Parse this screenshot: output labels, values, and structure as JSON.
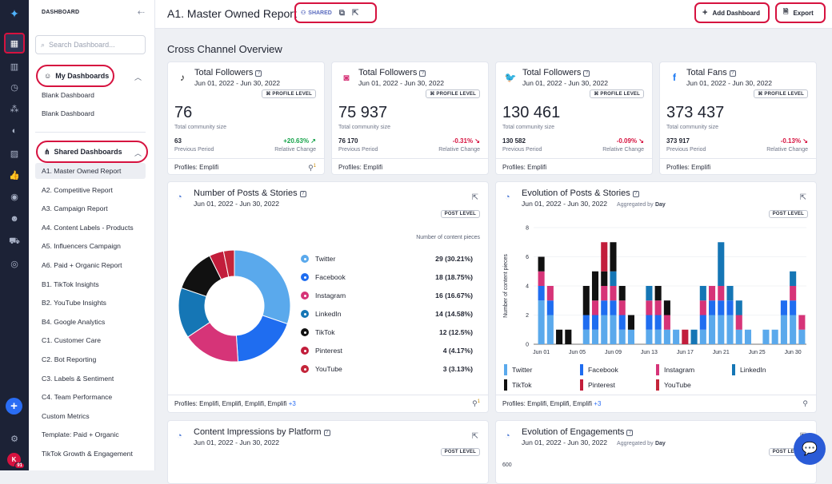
{
  "rail": {
    "avatar_initial": "K",
    "avatar_badge": "91"
  },
  "sidebar": {
    "header": "DASHBOARD",
    "search_placeholder": "Search Dashboard...",
    "my_dashboards_label": "My Dashboards",
    "my_dashboards": [
      "Blank Dashboard",
      "Blank Dashboard"
    ],
    "shared_dashboards_label": "Shared Dashboards",
    "shared_dashboards": [
      "A1. Master Owned Report",
      "A2. Competitive Report",
      "A3. Campaign Report",
      "A4. Content Labels - Products",
      "A5. Influencers Campaign",
      "A6. Paid + Organic Report",
      "B1. TikTok Insights",
      "B2. YouTube Insights",
      "B4. Google Analytics",
      "C1. Customer Care",
      "C2. Bot Reporting",
      "C3. Labels & Sentiment",
      "C4. Team Performance",
      "Custom Metrics",
      "Template: Paid + Organic",
      "TikTok Growth & Engagement"
    ]
  },
  "header": {
    "title": "A1. Master Owned Report",
    "shared_label": "SHARED",
    "add_dashboard_label": "Add Dashboard",
    "export_label": "Export"
  },
  "section_title": "Cross Channel Overview",
  "stats": [
    {
      "network": "TikTok",
      "icon": "tiktok-icon",
      "title": "Total Followers",
      "date": "Jun 01, 2022 - Jun 30, 2022",
      "level": "PROFILE LEVEL",
      "value": "76",
      "sub": "Total community size",
      "prev": "63",
      "prev_label": "Previous Period",
      "change": "+20.63%",
      "change_dir": "up",
      "change_label": "Relative Change",
      "profiles": "Profiles: Emplifi",
      "badge": "1"
    },
    {
      "network": "Instagram",
      "icon": "instagram-icon",
      "title": "Total Followers",
      "date": "Jun 01, 2022 - Jun 30, 2022",
      "level": "PROFILE LEVEL",
      "value": "75 937",
      "sub": "Total community size",
      "prev": "76 170",
      "prev_label": "Previous Period",
      "change": "-0.31%",
      "change_dir": "down",
      "change_label": "Relative Change",
      "profiles": "Profiles: Emplifi",
      "badge": ""
    },
    {
      "network": "Twitter",
      "icon": "twitter-icon",
      "title": "Total Followers",
      "date": "Jun 01, 2022 - Jun 30, 2022",
      "level": "PROFILE LEVEL",
      "value": "130 461",
      "sub": "Total community size",
      "prev": "130 582",
      "prev_label": "Previous Period",
      "change": "-0.09%",
      "change_dir": "down",
      "change_label": "Relative Change",
      "profiles": "Profiles: Emplifi",
      "badge": ""
    },
    {
      "network": "Facebook",
      "icon": "facebook-icon",
      "title": "Total Fans",
      "date": "Jun 01, 2022 - Jun 30, 2022",
      "level": "PROFILE LEVEL",
      "value": "373 437",
      "sub": "Total community size",
      "prev": "373 917",
      "prev_label": "Previous Period",
      "change": "-0.13%",
      "change_dir": "down",
      "change_label": "Relative Change",
      "profiles": "Profiles: Emplifi",
      "badge": ""
    }
  ],
  "posts_card": {
    "title": "Number of Posts & Stories",
    "date": "Jun 01, 2022 - Jun 30, 2022",
    "level": "POST LEVEL",
    "legend_header": "Number of content pieces",
    "profiles": "Profiles: Emplifi, Emplifi, Emplifi, Emplifi",
    "more": "+3",
    "badge": "1"
  },
  "evo_card": {
    "title": "Evolution of Posts & Stories",
    "date": "Jun 01, 2022 - Jun 30, 2022",
    "aggregated_prefix": "Aggregated by",
    "aggregated_value": "Day",
    "level": "POST LEVEL",
    "profiles": "Profiles: Emplifi, Emplifi, Emplifi",
    "more": "+3"
  },
  "impressions_card": {
    "title": "Content Impressions by Platform",
    "date": "Jun 01, 2022 - Jun 30, 2022",
    "level": "POST LEVEL"
  },
  "engagements_card": {
    "title": "Evolution of Engagements",
    "date": "Jun 01, 2022 - Jun 30, 2022",
    "aggregated_prefix": "Aggregated by",
    "aggregated_value": "Day",
    "level": "POST LEVEL",
    "y_tick_top": "600"
  },
  "chart_data": [
    {
      "type": "pie",
      "categories": [
        "Twitter",
        "Facebook",
        "Instagram",
        "LinkedIn",
        "TikTok",
        "Pinterest",
        "YouTube"
      ],
      "values": [
        29,
        18,
        16,
        14,
        12,
        4,
        3
      ],
      "labels": [
        "29 (30.21%)",
        "18 (18.75%)",
        "16 (16.67%)",
        "14 (14.58%)",
        "12 (12.5%)",
        "4 (4.17%)",
        "3 (3.13%)"
      ],
      "colors": [
        "#5aa9ec",
        "#1f6df0",
        "#d63478",
        "#1576b5",
        "#111111",
        "#c21d3b",
        "#c4253a"
      ],
      "ylabel": "Number of content pieces"
    },
    {
      "type": "bar",
      "stacked": true,
      "ylabel": "Number of content pieces",
      "ylim": [
        0,
        8
      ],
      "yticks": [
        0,
        2,
        4,
        6,
        8
      ],
      "x_tick_labels": [
        "Jun 01",
        "Jun 05",
        "Jun 09",
        "Jun 13",
        "Jun 17",
        "Jun 21",
        "Jun 25",
        "Jun 30"
      ],
      "x_tick_positions": [
        1,
        5,
        9,
        13,
        17,
        21,
        25,
        29
      ],
      "series": [
        {
          "name": "Twitter",
          "color": "#5aa9ec",
          "values": [
            3,
            2,
            0,
            0,
            0,
            1,
            1,
            2,
            2,
            1,
            1,
            0,
            1,
            1,
            1,
            1,
            0,
            0,
            1,
            2,
            2,
            2,
            1,
            1,
            0,
            1,
            1,
            2,
            2,
            1
          ]
        },
        {
          "name": "Facebook",
          "color": "#1f6df0",
          "values": [
            1,
            1,
            0,
            0,
            0,
            1,
            1,
            1,
            1,
            1,
            0,
            0,
            1,
            1,
            0,
            0,
            0,
            0,
            1,
            1,
            1,
            1,
            0,
            0,
            0,
            0,
            0,
            1,
            1,
            0
          ]
        },
        {
          "name": "Instagram",
          "color": "#d63478",
          "values": [
            1,
            1,
            0,
            0,
            0,
            0,
            1,
            1,
            1,
            1,
            0,
            0,
            1,
            1,
            1,
            0,
            0,
            0,
            1,
            1,
            1,
            0,
            1,
            0,
            0,
            0,
            0,
            0,
            1,
            1
          ]
        },
        {
          "name": "LinkedIn",
          "color": "#1576b5",
          "values": [
            0,
            0,
            0,
            0,
            0,
            0,
            0,
            0,
            1,
            0,
            0,
            0,
            1,
            0,
            0,
            0,
            0,
            1,
            1,
            0,
            3,
            1,
            1,
            0,
            0,
            0,
            0,
            0,
            1,
            0
          ]
        },
        {
          "name": "TikTok",
          "color": "#111111",
          "values": [
            1,
            0,
            1,
            1,
            0,
            2,
            2,
            1,
            2,
            1,
            1,
            0,
            0,
            1,
            1,
            0,
            0,
            0,
            0,
            0,
            0,
            0,
            0,
            0,
            0,
            0,
            0,
            0,
            0,
            0
          ]
        },
        {
          "name": "Pinterest",
          "color": "#c21d3b",
          "values": [
            0,
            0,
            0,
            0,
            0,
            0,
            0,
            2,
            0,
            0,
            0,
            0,
            0,
            0,
            0,
            0,
            1,
            0,
            0,
            0,
            0,
            0,
            0,
            0,
            0,
            0,
            0,
            0,
            0,
            0
          ]
        },
        {
          "name": "YouTube",
          "color": "#c4253a",
          "values": [
            0,
            0,
            0,
            0,
            0,
            0,
            0,
            0,
            0,
            0,
            0,
            0,
            0,
            0,
            0,
            0,
            0,
            0,
            0,
            0,
            0,
            0,
            0,
            0,
            0,
            0,
            0,
            0,
            0,
            0
          ]
        }
      ]
    }
  ]
}
